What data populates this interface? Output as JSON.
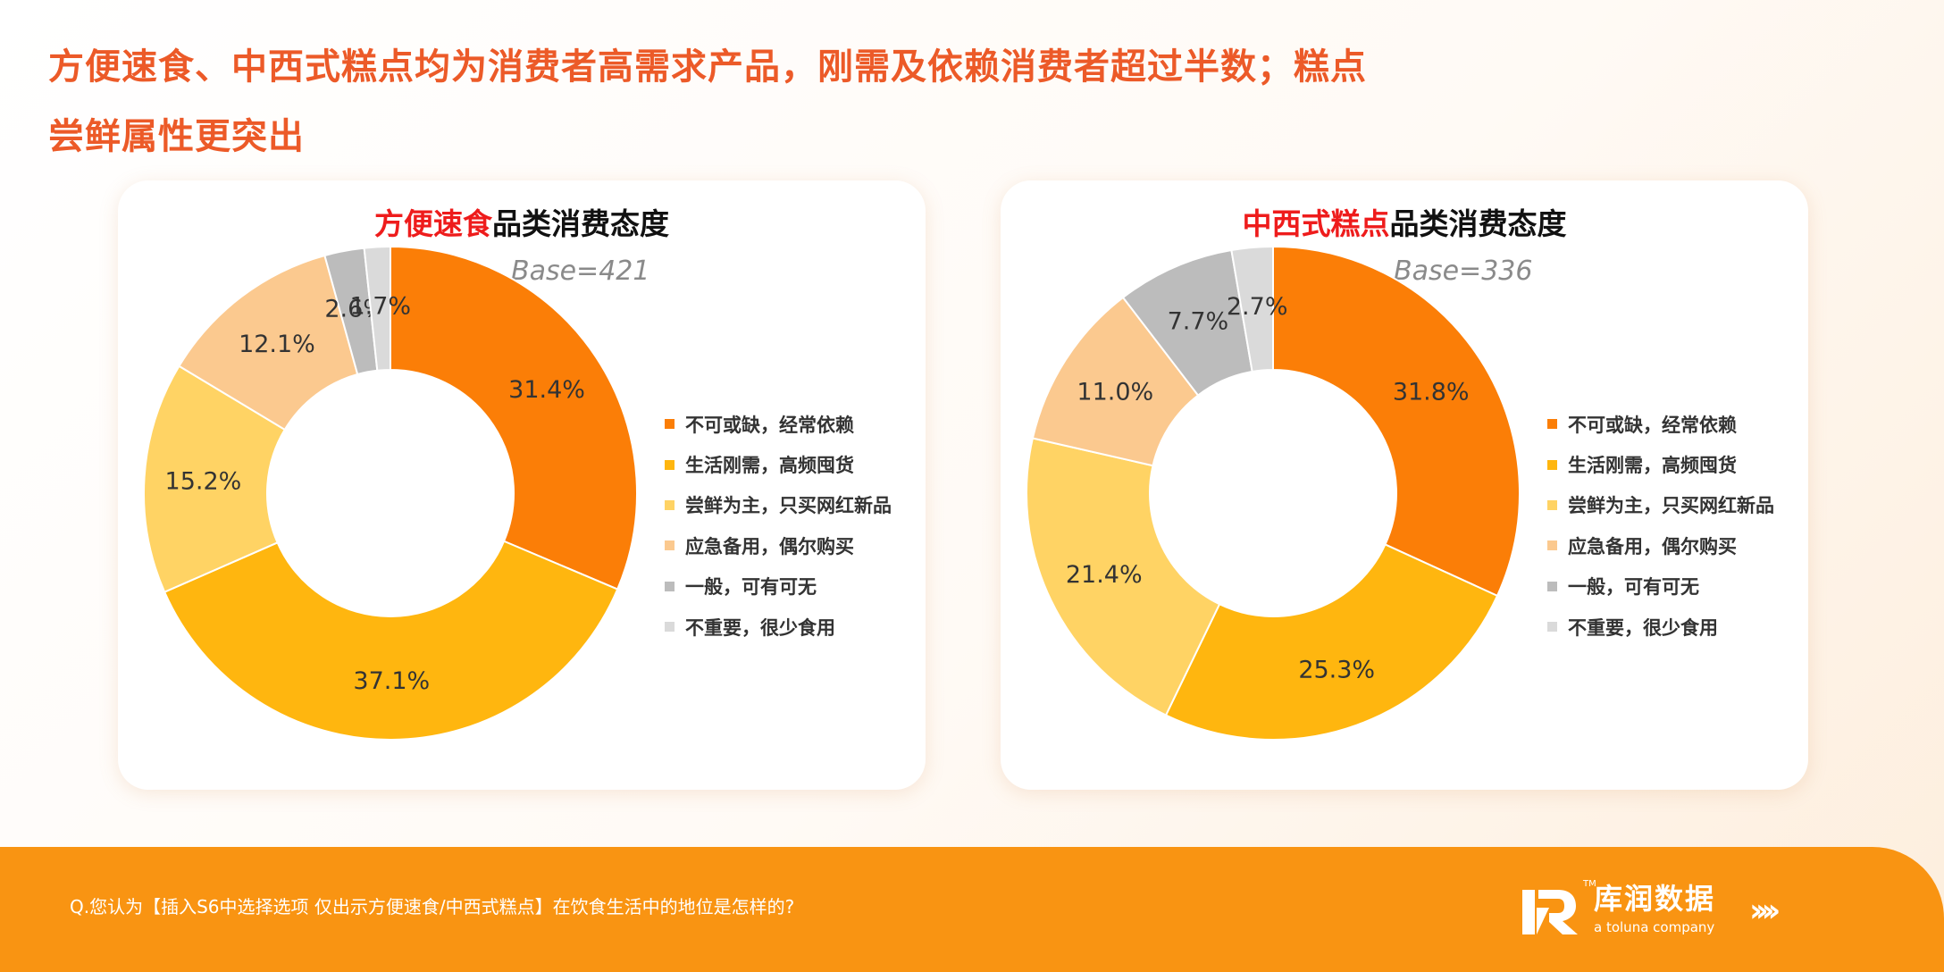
{
  "headline": {
    "line1": "方便速食、中西式糕点均为消费者高需求产品，刚需及依赖消费者超过半数；糕点",
    "line2": "尝鲜属性更突出"
  },
  "colors": {
    "headline": "#ec5a28",
    "title_highlight": "#ee1c1c",
    "footer": "#f99412"
  },
  "legend": [
    {
      "label": "不可或缺，经常依赖",
      "color": "#fb7e07"
    },
    {
      "label": "生活刚需，高频囤货",
      "color": "#ffb60f"
    },
    {
      "label": "尝鲜为主，只买网红新品",
      "color": "#ffd364"
    },
    {
      "label": "应急备用，偶尔购买",
      "color": "#fbc98f"
    },
    {
      "label": "一般，可有可无",
      "color": "#bcbcbc"
    },
    {
      "label": "不重要，很少食用",
      "color": "#dadada"
    }
  ],
  "chart_data": [
    {
      "type": "pie",
      "title_highlight": "方便速食",
      "title_rest": "品类消费态度",
      "base": "Base=421",
      "categories": [
        "不可或缺，经常依赖",
        "生活刚需，高频囤货",
        "尝鲜为主，只买网红新品",
        "应急备用，偶尔购买",
        "一般，可有可无",
        "不重要，很少食用"
      ],
      "values": [
        31.4,
        37.1,
        15.2,
        12.1,
        2.6,
        1.7
      ],
      "labels": [
        "31.4%",
        "37.1%",
        "15.2%",
        "12.1%",
        "2.6%",
        "1.7%"
      ],
      "legend": "right"
    },
    {
      "type": "pie",
      "title_highlight": "中西式糕点",
      "title_rest": "品类消费态度",
      "base": "Base=336",
      "categories": [
        "不可或缺，经常依赖",
        "生活刚需，高频囤货",
        "尝鲜为主，只买网红新品",
        "应急备用，偶尔购买",
        "一般，可有可无",
        "不重要，很少食用"
      ],
      "values": [
        31.8,
        25.3,
        21.4,
        11.0,
        7.7,
        2.7
      ],
      "labels": [
        "31.8%",
        "25.3%",
        "21.4%",
        "11.0%",
        "7.7%",
        "2.7%"
      ],
      "legend": "right"
    }
  ],
  "footer": {
    "question": "Q.您认为【插入S6中选择选项  仅出示方便速食/中西式糕点】在饮食生活中的地位是怎样的?",
    "brand_name": "库润数据",
    "brand_sub": "a toluna company",
    "brand_tm": "TM",
    "arrows": "››››"
  }
}
